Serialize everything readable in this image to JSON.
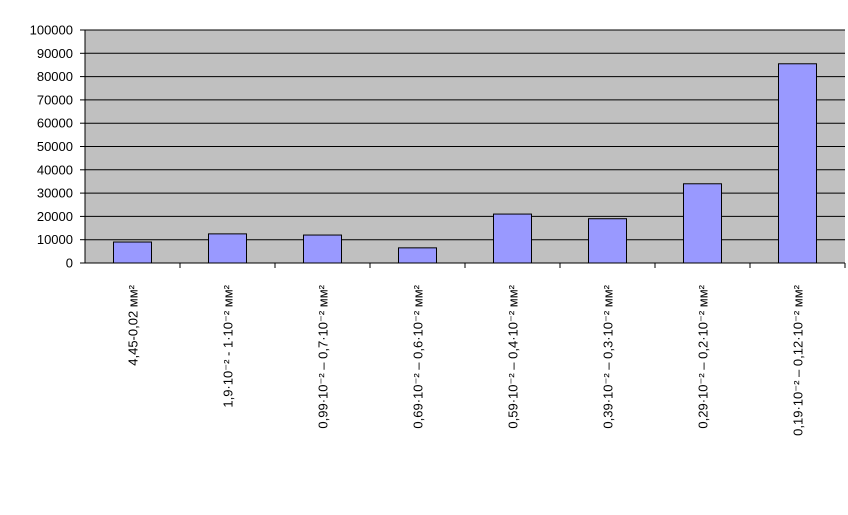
{
  "chart_data": {
    "type": "bar",
    "categories": [
      "4,45-0,02 мм²",
      "1,9·10⁻² - 1·10⁻² мм²",
      "0,99·10⁻² – 0,7·10⁻² мм²",
      "0,69·10⁻² – 0,6·10⁻² мм²",
      "0,59·10⁻² – 0,4·10⁻² мм²",
      "0,39·10⁻² – 0,3·10⁻² мм²",
      "0,29·10⁻² – 0,2·10⁻² мм²",
      "0,19·10⁻² – 0,12·10⁻² мм²"
    ],
    "values": [
      9000,
      12500,
      12000,
      6500,
      21000,
      19000,
      34000,
      85500
    ],
    "color": "#9999ff",
    "ylim": [
      0,
      100000
    ],
    "yticks": [
      0,
      10000,
      20000,
      30000,
      40000,
      50000,
      60000,
      70000,
      80000,
      90000,
      100000
    ],
    "grid": true
  }
}
